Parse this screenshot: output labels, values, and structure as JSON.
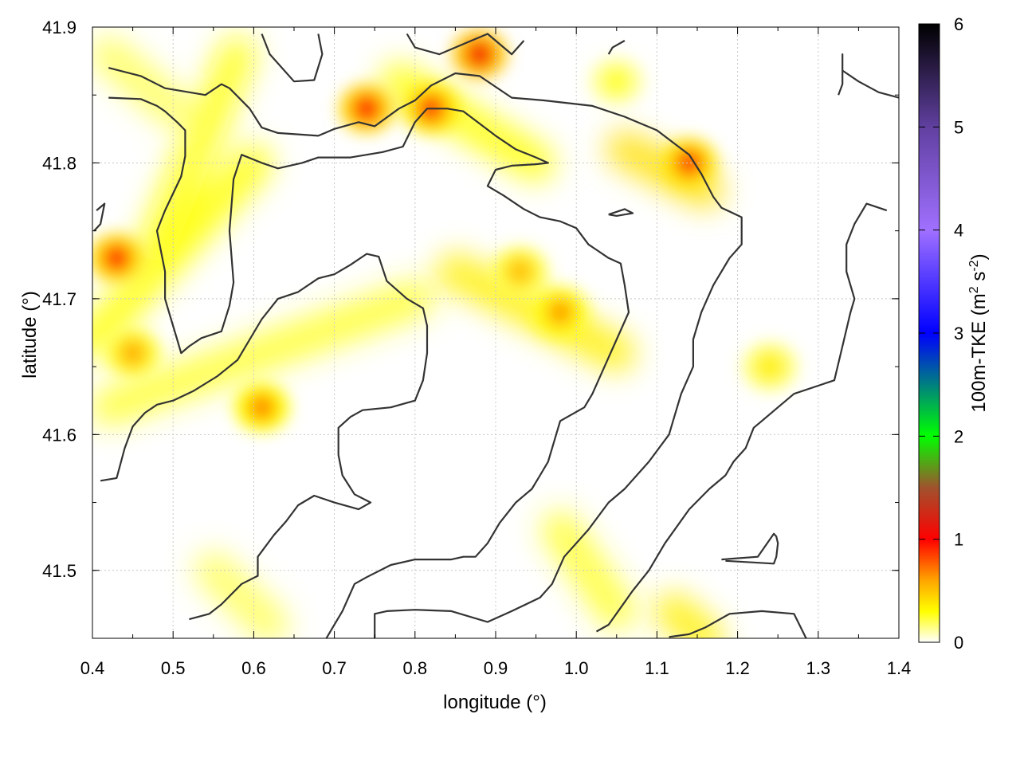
{
  "chart_data": {
    "type": "heatmap",
    "xlabel": "longitude (°)",
    "ylabel": "latitude (°)",
    "xlim": [
      0.4,
      1.4
    ],
    "ylim": [
      41.45,
      41.9
    ],
    "x_ticks": [
      "0.4",
      "0.5",
      "0.6",
      "0.7",
      "0.8",
      "0.9",
      "1.0",
      "1.1",
      "1.2",
      "1.3",
      "1.4"
    ],
    "y_ticks": [
      "41.5",
      "41.6",
      "41.7",
      "41.8",
      "41.9"
    ],
    "grid": true,
    "colorbar": {
      "label_main": "100m-TKE (m",
      "label_sup1": "2",
      "label_mid": " s",
      "label_sup2": "-2",
      "label_end": ")",
      "range": [
        0,
        6
      ],
      "ticks": [
        "0",
        "1",
        "2",
        "3",
        "4",
        "5",
        "6"
      ],
      "stops": [
        {
          "v": 0.0,
          "c": "#ffffff"
        },
        {
          "v": 0.3,
          "c": "#ffff00"
        },
        {
          "v": 0.6,
          "c": "#ffa500"
        },
        {
          "v": 1.0,
          "c": "#ff0000"
        },
        {
          "v": 1.5,
          "c": "#a0522d"
        },
        {
          "v": 2.0,
          "c": "#00ff00"
        },
        {
          "v": 3.0,
          "c": "#0000ff"
        },
        {
          "v": 4.0,
          "c": "#a070ff"
        },
        {
          "v": 5.0,
          "c": "#6040a0"
        },
        {
          "v": 6.0,
          "c": "#000000"
        }
      ]
    },
    "hotspots": [
      {
        "lon": 0.43,
        "lat": 41.73,
        "tke": 0.9
      },
      {
        "lon": 0.45,
        "lat": 41.66,
        "tke": 0.55
      },
      {
        "lon": 0.88,
        "lat": 41.88,
        "tke": 1.05
      },
      {
        "lon": 0.74,
        "lat": 41.84,
        "tke": 0.95
      },
      {
        "lon": 0.82,
        "lat": 41.84,
        "tke": 0.85
      },
      {
        "lon": 0.98,
        "lat": 41.69,
        "tke": 0.6
      },
      {
        "lon": 1.14,
        "lat": 41.8,
        "tke": 0.85
      },
      {
        "lon": 0.61,
        "lat": 41.62,
        "tke": 0.65
      },
      {
        "lon": 0.93,
        "lat": 41.72,
        "tke": 0.5
      },
      {
        "lon": 1.05,
        "lat": 41.86,
        "tke": 0.25
      },
      {
        "lon": 1.24,
        "lat": 41.65,
        "tke": 0.35
      }
    ],
    "bands": [
      {
        "from": [
          0.4,
          41.67
        ],
        "to": [
          0.6,
          41.8
        ],
        "tke": 0.3
      },
      {
        "from": [
          0.42,
          41.62
        ],
        "to": [
          0.8,
          41.7
        ],
        "tke": 0.25
      },
      {
        "from": [
          0.48,
          41.74
        ],
        "to": [
          0.58,
          41.88
        ],
        "tke": 0.28
      },
      {
        "from": [
          0.85,
          41.72
        ],
        "to": [
          1.05,
          41.66
        ],
        "tke": 0.35
      },
      {
        "from": [
          0.78,
          41.86
        ],
        "to": [
          0.95,
          41.8
        ],
        "tke": 0.3
      },
      {
        "from": [
          1.06,
          41.81
        ],
        "to": [
          1.16,
          41.78
        ],
        "tke": 0.4
      },
      {
        "from": [
          0.98,
          41.53
        ],
        "to": [
          1.05,
          41.47
        ],
        "tke": 0.25
      },
      {
        "from": [
          0.55,
          41.5
        ],
        "to": [
          0.62,
          41.46
        ],
        "tke": 0.2
      },
      {
        "from": [
          1.12,
          41.47
        ],
        "to": [
          1.16,
          41.45
        ],
        "tke": 0.35
      },
      {
        "from": [
          0.42,
          41.88
        ],
        "to": [
          0.5,
          41.84
        ],
        "tke": 0.2
      }
    ],
    "contours": [
      [
        [
          0.42,
          41.87
        ],
        [
          0.46,
          41.864
        ],
        [
          0.49,
          41.855
        ],
        [
          0.54,
          41.85
        ],
        [
          0.56,
          41.858
        ],
        [
          0.57,
          41.855
        ],
        [
          0.595,
          41.84
        ],
        [
          0.61,
          41.826
        ],
        [
          0.63,
          41.822
        ],
        [
          0.68,
          41.82
        ],
        [
          0.7,
          41.825
        ],
        [
          0.73,
          41.83
        ],
        [
          0.75,
          41.827
        ],
        [
          0.78,
          41.84
        ],
        [
          0.8,
          41.846
        ],
        [
          0.82,
          41.857
        ],
        [
          0.85,
          41.866
        ],
        [
          0.88,
          41.864
        ],
        [
          0.9,
          41.856
        ],
        [
          0.92,
          41.848
        ],
        [
          0.96,
          41.846
        ],
        [
          1.02,
          41.842
        ],
        [
          1.06,
          41.834
        ],
        [
          1.1,
          41.824
        ],
        [
          1.14,
          41.806
        ],
        [
          1.155,
          41.792
        ],
        [
          1.17,
          41.775
        ],
        [
          1.18,
          41.767
        ],
        [
          1.205,
          41.76
        ],
        [
          1.205,
          41.74
        ],
        [
          1.19,
          41.73
        ],
        [
          1.17,
          41.71
        ],
        [
          1.155,
          41.69
        ],
        [
          1.145,
          41.67
        ],
        [
          1.145,
          41.65
        ],
        [
          1.13,
          41.63
        ],
        [
          1.12,
          41.61
        ],
        [
          1.115,
          41.6
        ],
        [
          1.09,
          41.58
        ],
        [
          1.06,
          41.56
        ],
        [
          1.04,
          41.55
        ],
        [
          1.015,
          41.53
        ],
        [
          1.0,
          41.52
        ],
        [
          0.985,
          41.51
        ],
        [
          0.97,
          41.49
        ],
        [
          0.955,
          41.48
        ],
        [
          0.92,
          41.47
        ],
        [
          0.89,
          41.462
        ],
        [
          0.845,
          41.47
        ],
        [
          0.8,
          41.471
        ],
        [
          0.765,
          41.47
        ],
        [
          0.75,
          41.468
        ],
        [
          0.75,
          41.45
        ]
      ],
      [
        [
          0.42,
          41.848
        ],
        [
          0.46,
          41.847
        ],
        [
          0.48,
          41.842
        ],
        [
          0.49,
          41.838
        ],
        [
          0.505,
          41.83
        ],
        [
          0.515,
          41.824
        ],
        [
          0.515,
          41.805
        ],
        [
          0.51,
          41.79
        ],
        [
          0.49,
          41.765
        ],
        [
          0.48,
          41.75
        ],
        [
          0.485,
          41.735
        ],
        [
          0.49,
          41.72
        ],
        [
          0.49,
          41.7
        ],
        [
          0.495,
          41.69
        ],
        [
          0.5,
          41.68
        ],
        [
          0.505,
          41.67
        ],
        [
          0.51,
          41.66
        ],
        [
          0.52,
          41.665
        ],
        [
          0.535,
          41.671
        ],
        [
          0.56,
          41.676
        ],
        [
          0.57,
          41.695
        ],
        [
          0.575,
          41.712
        ],
        [
          0.57,
          41.75
        ],
        [
          0.575,
          41.788
        ],
        [
          0.585,
          41.806
        ],
        [
          0.61,
          41.8
        ],
        [
          0.63,
          41.796
        ],
        [
          0.66,
          41.8
        ],
        [
          0.68,
          41.804
        ],
        [
          0.72,
          41.804
        ],
        [
          0.76,
          41.808
        ],
        [
          0.785,
          41.812
        ],
        [
          0.8,
          41.83
        ],
        [
          0.815,
          41.84
        ],
        [
          0.84,
          41.84
        ],
        [
          0.86,
          41.838
        ],
        [
          0.9,
          41.82
        ],
        [
          0.925,
          41.81
        ],
        [
          0.95,
          41.804
        ],
        [
          0.965,
          41.8
        ],
        [
          0.95,
          41.799
        ],
        [
          0.92,
          41.798
        ],
        [
          0.9,
          41.795
        ],
        [
          0.89,
          41.783
        ],
        [
          0.91,
          41.776
        ],
        [
          0.935,
          41.766
        ],
        [
          0.955,
          41.76
        ],
        [
          0.98,
          41.757
        ],
        [
          1.0,
          41.752
        ],
        [
          1.015,
          41.74
        ],
        [
          1.025,
          41.736
        ],
        [
          1.04,
          41.73
        ],
        [
          1.055,
          41.726
        ],
        [
          1.06,
          41.71
        ],
        [
          1.065,
          41.69
        ],
        [
          1.05,
          41.67
        ],
        [
          1.035,
          41.65
        ],
        [
          1.02,
          41.63
        ],
        [
          1.01,
          41.62
        ],
        [
          0.98,
          41.61
        ],
        [
          0.965,
          41.58
        ],
        [
          0.955,
          41.57
        ],
        [
          0.945,
          41.56
        ],
        [
          0.925,
          41.55
        ],
        [
          0.905,
          41.535
        ],
        [
          0.89,
          41.52
        ],
        [
          0.875,
          41.51
        ],
        [
          0.86,
          41.51
        ],
        [
          0.845,
          41.508
        ],
        [
          0.8,
          41.508
        ],
        [
          0.77,
          41.504
        ],
        [
          0.74,
          41.495
        ],
        [
          0.725,
          41.49
        ],
        [
          0.71,
          41.47
        ],
        [
          0.69,
          41.45
        ]
      ],
      [
        [
          0.41,
          41.566
        ],
        [
          0.43,
          41.568
        ],
        [
          0.44,
          41.59
        ],
        [
          0.45,
          41.606
        ],
        [
          0.465,
          41.616
        ],
        [
          0.48,
          41.622
        ],
        [
          0.5,
          41.625
        ],
        [
          0.525,
          41.632
        ],
        [
          0.555,
          41.643
        ],
        [
          0.58,
          41.655
        ],
        [
          0.6,
          41.675
        ],
        [
          0.61,
          41.685
        ],
        [
          0.63,
          41.7
        ],
        [
          0.655,
          41.705
        ],
        [
          0.68,
          41.715
        ],
        [
          0.7,
          41.718
        ],
        [
          0.72,
          41.725
        ],
        [
          0.74,
          41.733
        ],
        [
          0.755,
          41.731
        ],
        [
          0.765,
          41.713
        ],
        [
          0.79,
          41.7
        ],
        [
          0.81,
          41.693
        ],
        [
          0.815,
          41.68
        ],
        [
          0.815,
          41.66
        ],
        [
          0.81,
          41.64
        ],
        [
          0.8,
          41.625
        ],
        [
          0.77,
          41.62
        ],
        [
          0.735,
          41.618
        ],
        [
          0.72,
          41.613
        ],
        [
          0.705,
          41.605
        ],
        [
          0.705,
          41.585
        ],
        [
          0.71,
          41.57
        ],
        [
          0.725,
          41.556
        ],
        [
          0.745,
          41.55
        ],
        [
          0.73,
          41.545
        ],
        [
          0.7,
          41.55
        ],
        [
          0.675,
          41.555
        ],
        [
          0.655,
          41.548
        ],
        [
          0.64,
          41.536
        ],
        [
          0.625,
          41.526
        ],
        [
          0.605,
          41.51
        ],
        [
          0.605,
          41.496
        ],
        [
          0.585,
          41.49
        ],
        [
          0.56,
          41.475
        ],
        [
          0.545,
          41.468
        ],
        [
          0.52,
          41.464
        ]
      ],
      [
        [
          1.285,
          41.45
        ],
        [
          1.27,
          41.468
        ],
        [
          1.23,
          41.47
        ],
        [
          1.19,
          41.468
        ],
        [
          1.16,
          41.458
        ],
        [
          1.14,
          41.453
        ],
        [
          1.115,
          41.451
        ]
      ],
      [
        [
          1.185,
          41.507
        ],
        [
          1.245,
          41.505
        ],
        [
          1.248,
          41.51
        ],
        [
          1.25,
          41.52
        ],
        [
          1.248,
          41.525
        ],
        [
          1.245,
          41.527
        ],
        [
          1.225,
          41.51
        ],
        [
          1.18,
          41.508
        ]
      ],
      [
        [
          1.025,
          41.455
        ],
        [
          1.04,
          41.46
        ],
        [
          1.07,
          41.485
        ],
        [
          1.09,
          41.5
        ],
        [
          1.11,
          41.52
        ],
        [
          1.14,
          41.545
        ],
        [
          1.165,
          41.56
        ],
        [
          1.185,
          41.57
        ],
        [
          1.195,
          41.58
        ],
        [
          1.21,
          41.59
        ],
        [
          1.22,
          41.605
        ],
        [
          1.23,
          41.61
        ],
        [
          1.25,
          41.62
        ],
        [
          1.27,
          41.63
        ],
        [
          1.3,
          41.636
        ],
        [
          1.32,
          41.64
        ],
        [
          1.33,
          41.665
        ],
        [
          1.34,
          41.69
        ],
        [
          1.345,
          41.7
        ],
        [
          1.335,
          41.72
        ],
        [
          1.335,
          41.74
        ],
        [
          1.345,
          41.755
        ],
        [
          1.36,
          41.77
        ],
        [
          1.385,
          41.765
        ]
      ],
      [
        [
          1.325,
          41.85
        ],
        [
          1.33,
          41.858
        ],
        [
          1.33,
          41.88
        ],
        [
          1.33,
          41.868
        ],
        [
          1.35,
          41.86
        ],
        [
          1.375,
          41.852
        ],
        [
          1.4,
          41.848
        ]
      ],
      [
        [
          0.405,
          41.765
        ],
        [
          0.415,
          41.77
        ],
        [
          0.41,
          41.755
        ],
        [
          0.402,
          41.75
        ]
      ],
      [
        [
          0.61,
          41.895
        ],
        [
          0.62,
          41.88
        ],
        [
          0.65,
          41.86
        ],
        [
          0.675,
          41.861
        ],
        [
          0.685,
          41.88
        ],
        [
          0.68,
          41.895
        ]
      ],
      [
        [
          0.79,
          41.895
        ],
        [
          0.8,
          41.885
        ],
        [
          0.83,
          41.88
        ],
        [
          0.87,
          41.89
        ],
        [
          0.89,
          41.895
        ],
        [
          0.92,
          41.88
        ],
        [
          0.935,
          41.89
        ]
      ],
      [
        [
          1.04,
          41.88
        ],
        [
          1.045,
          41.885
        ],
        [
          1.06,
          41.89
        ]
      ],
      [
        [
          1.04,
          41.762
        ],
        [
          1.06,
          41.766
        ],
        [
          1.07,
          41.763
        ],
        [
          1.05,
          41.761
        ],
        [
          1.04,
          41.762
        ]
      ]
    ]
  }
}
